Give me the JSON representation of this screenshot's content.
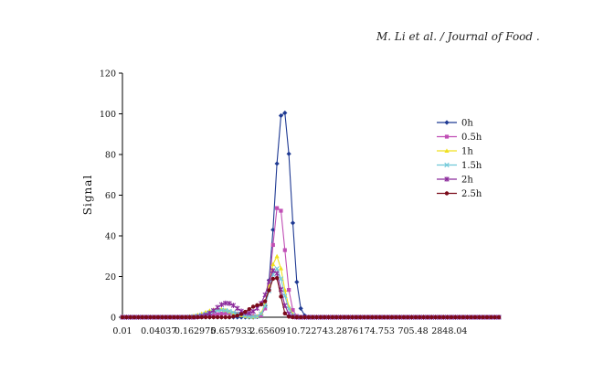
{
  "header": {
    "citation": "M. Li et al. / Journal of Food ."
  },
  "chart_data": {
    "type": "line",
    "title": "",
    "xlabel": "",
    "ylabel": "Signal",
    "ylim": [
      0,
      120
    ],
    "yticks": [
      0,
      20,
      40,
      60,
      80,
      100,
      120
    ],
    "x_scale": "log",
    "x_tick_labels": [
      "0.01",
      "0.04037",
      "0.162975",
      "0.657933",
      "2.65609",
      "10.7227",
      "43.2876",
      "174.753",
      "705.48",
      "2848.04"
    ],
    "series": [
      {
        "name": "0h",
        "color": "#1F3A93",
        "marker": "diamond",
        "peaks": [
          {
            "center": 4.65,
            "height": 99.5,
            "width": 0.12
          },
          {
            "center": 6.25,
            "height": 15.0,
            "width": 0.07
          }
        ],
        "range": [
          3.6,
          6.6
        ]
      },
      {
        "name": "0.5h",
        "color": "#C04EB5",
        "marker": "square",
        "peaks": [
          {
            "center": 4.05,
            "height": 56.0,
            "width": 0.1
          },
          {
            "center": 0.6,
            "height": 2.0,
            "width": 0.25
          }
        ],
        "range": [
          3.2,
          4.65
        ]
      },
      {
        "name": "1h",
        "color": "#F0E020",
        "marker": "triangle",
        "peaks": [
          {
            "center": 3.72,
            "height": 30.0,
            "width": 0.11
          },
          {
            "center": 0.4,
            "height": 4.0,
            "width": 0.22
          }
        ],
        "range": [
          2.9,
          4.45
        ]
      },
      {
        "name": "1.5h",
        "color": "#6EC8D8",
        "marker": "x",
        "peaks": [
          {
            "center": 3.7,
            "height": 24.0,
            "width": 0.11
          },
          {
            "center": 0.45,
            "height": 3.5,
            "width": 0.22
          }
        ],
        "range": [
          2.9,
          4.35
        ]
      },
      {
        "name": "2h",
        "color": "#8B2A9B",
        "marker": "star",
        "peaks": [
          {
            "center": 3.52,
            "height": 20.0,
            "width": 0.1
          },
          {
            "center": 0.55,
            "height": 7.0,
            "width": 0.18
          },
          {
            "center": 2.4,
            "height": 6.0,
            "width": 0.15
          }
        ],
        "range": [
          2.8,
          4.05
        ]
      },
      {
        "name": "2.5h",
        "color": "#7A0A1A",
        "marker": "circle",
        "peaks": [
          {
            "center": 3.4,
            "height": 16.5,
            "width": 0.08
          },
          {
            "center": 1.9,
            "height": 6.0,
            "width": 0.18
          },
          {
            "center": 4.05,
            "height": 5.0,
            "width": 0.04
          }
        ],
        "range": [
          2.5,
          4.3
        ]
      }
    ]
  }
}
